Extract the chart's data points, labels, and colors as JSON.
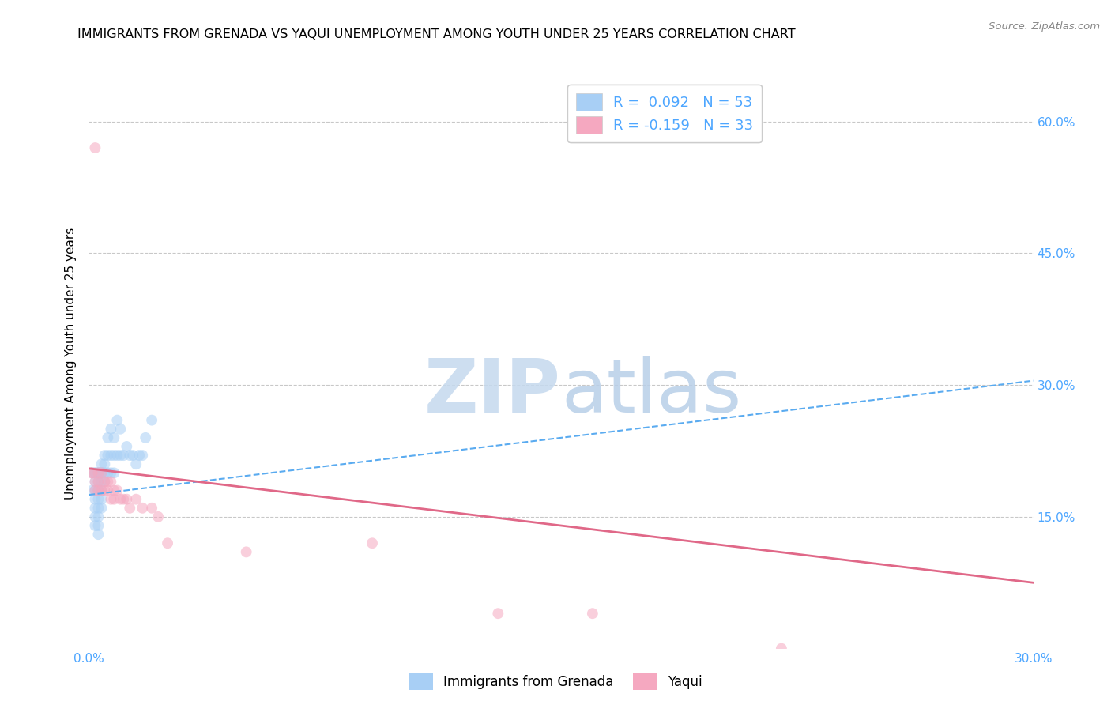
{
  "title": "IMMIGRANTS FROM GRENADA VS YAQUI UNEMPLOYMENT AMONG YOUTH UNDER 25 YEARS CORRELATION CHART",
  "source": "Source: ZipAtlas.com",
  "ylabel": "Unemployment Among Youth under 25 years",
  "xlim": [
    0.0,
    0.3
  ],
  "ylim": [
    0.0,
    0.65
  ],
  "grid_color": "#c8c8c8",
  "background_color": "#ffffff",
  "blue_scatter_x": [
    0.001,
    0.001,
    0.002,
    0.002,
    0.002,
    0.002,
    0.002,
    0.002,
    0.002,
    0.002,
    0.003,
    0.003,
    0.003,
    0.003,
    0.003,
    0.003,
    0.003,
    0.003,
    0.003,
    0.003,
    0.004,
    0.004,
    0.004,
    0.004,
    0.004,
    0.004,
    0.004,
    0.005,
    0.005,
    0.005,
    0.005,
    0.006,
    0.006,
    0.006,
    0.007,
    0.007,
    0.007,
    0.008,
    0.008,
    0.008,
    0.009,
    0.009,
    0.01,
    0.01,
    0.011,
    0.012,
    0.013,
    0.014,
    0.015,
    0.016,
    0.017,
    0.018,
    0.02
  ],
  "blue_scatter_y": [
    0.18,
    0.2,
    0.2,
    0.2,
    0.19,
    0.18,
    0.17,
    0.16,
    0.15,
    0.14,
    0.2,
    0.2,
    0.19,
    0.18,
    0.18,
    0.17,
    0.16,
    0.15,
    0.14,
    0.13,
    0.21,
    0.2,
    0.2,
    0.19,
    0.18,
    0.17,
    0.16,
    0.22,
    0.21,
    0.2,
    0.19,
    0.24,
    0.22,
    0.2,
    0.25,
    0.22,
    0.2,
    0.24,
    0.22,
    0.2,
    0.26,
    0.22,
    0.25,
    0.22,
    0.22,
    0.23,
    0.22,
    0.22,
    0.21,
    0.22,
    0.22,
    0.24,
    0.26
  ],
  "pink_scatter_x": [
    0.001,
    0.001,
    0.002,
    0.002,
    0.003,
    0.003,
    0.003,
    0.004,
    0.004,
    0.005,
    0.005,
    0.006,
    0.006,
    0.007,
    0.007,
    0.008,
    0.008,
    0.009,
    0.01,
    0.011,
    0.012,
    0.013,
    0.015,
    0.017,
    0.02,
    0.022,
    0.025,
    0.05,
    0.09,
    0.13,
    0.16,
    0.22,
    0.002
  ],
  "pink_scatter_y": [
    0.2,
    0.2,
    0.19,
    0.18,
    0.2,
    0.19,
    0.18,
    0.2,
    0.18,
    0.19,
    0.18,
    0.19,
    0.18,
    0.19,
    0.17,
    0.18,
    0.17,
    0.18,
    0.17,
    0.17,
    0.17,
    0.16,
    0.17,
    0.16,
    0.16,
    0.15,
    0.12,
    0.11,
    0.12,
    0.04,
    0.04,
    0.0,
    0.57
  ],
  "blue_trend_x": [
    0.0,
    0.3
  ],
  "blue_trend_y": [
    0.175,
    0.305
  ],
  "pink_trend_x": [
    0.0,
    0.3
  ],
  "pink_trend_y": [
    0.205,
    0.075
  ],
  "legend_items": [
    {
      "label": "R =  0.092   N = 53",
      "color": "#a8cff5"
    },
    {
      "label": "R = -0.159   N = 33",
      "color": "#f5a8c0"
    }
  ],
  "bottom_legend": [
    {
      "label": "Immigrants from Grenada",
      "color": "#a8cff5"
    },
    {
      "label": "Yaqui",
      "color": "#f5a8c0"
    }
  ],
  "marker_size": 100,
  "marker_alpha": 0.55,
  "title_fontsize": 11.5,
  "axis_label_fontsize": 11,
  "tick_fontsize": 11,
  "tick_color": "#4da6ff"
}
